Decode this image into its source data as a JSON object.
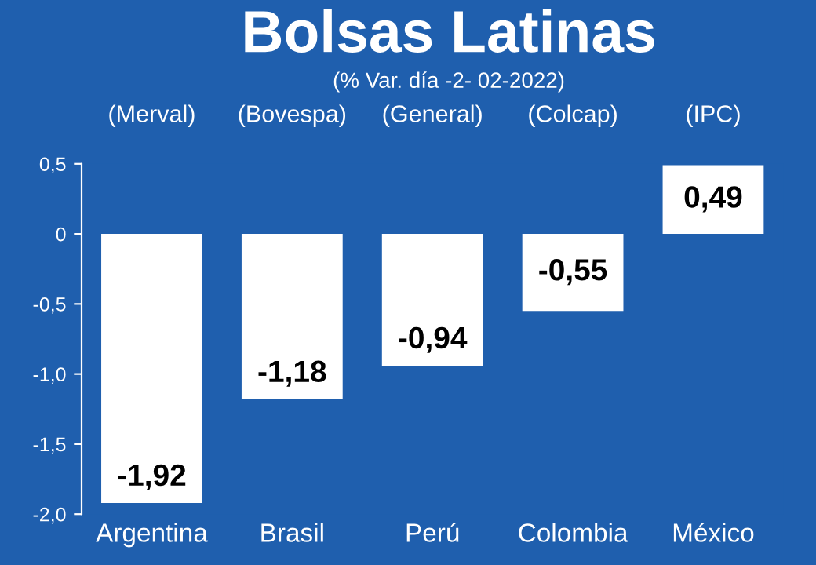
{
  "chart_data": {
    "type": "bar",
    "title": "Bolsas Latinas",
    "subtitle": "(% Var. día -2- 02-2022)",
    "categories": [
      "Argentina",
      "Brasil",
      "Perú",
      "Colombia",
      "México"
    ],
    "values": [
      -1.92,
      -1.18,
      -0.94,
      -0.55,
      0.49
    ],
    "color": "#ffffff",
    "value_labels": [
      "-1,92",
      "-1,18",
      "-0,94",
      "-0,55",
      "0,49"
    ],
    "annotations": [
      "(Merval)",
      "(Bovespa)",
      "(General)",
      "(Colcap)",
      "(IPC)"
    ],
    "ylim": [
      -2.0,
      0.5
    ],
    "yticks": [
      {
        "value": 0.5,
        "label": "0,5"
      },
      0,
      {
        "value": -0.5,
        "label": "-0,5"
      },
      {
        "value": -1.0,
        "label": "-1,0"
      },
      {
        "value": -1.5,
        "label": "-1,5"
      },
      {
        "value": -2.0,
        "label": "-2,0"
      }
    ],
    "grid": false,
    "legend": false
  }
}
